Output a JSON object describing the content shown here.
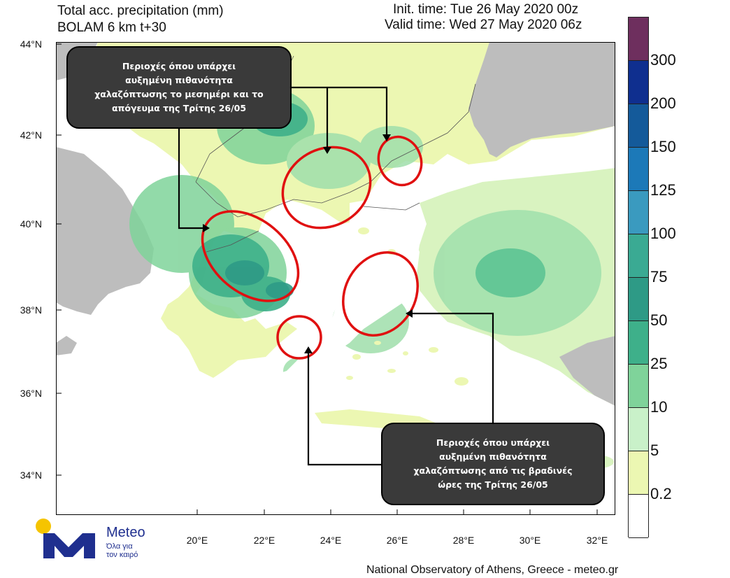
{
  "header": {
    "title_line1": "Total acc. precipitation (mm)",
    "title_line2": "BOLAM 6 km t+30",
    "init_time": "Init. time: Tue 26 May 2020 00z",
    "valid_time": "Valid time: Wed 27 May 2020 06z"
  },
  "axes": {
    "lat_labels": [
      "44°N",
      "42°N",
      "40°N",
      "38°N",
      "36°N",
      "34°N"
    ],
    "lon_labels": [
      "20°E",
      "22°E",
      "24°E",
      "26°E",
      "28°E",
      "30°E",
      "32°E"
    ]
  },
  "colorbar": {
    "labels": [
      "300",
      "200",
      "150",
      "125",
      "100",
      "75",
      "50",
      "25",
      "10",
      "5",
      "0.2"
    ],
    "colors": [
      "#6e2f5e",
      "#0f2f8f",
      "#145a9a",
      "#1c79b8",
      "#3a9abf",
      "#3aaa93",
      "#2e9a86",
      "#3eb08a",
      "#7fd39a",
      "#c9f1c9",
      "#ecf7b2",
      "#ffffff"
    ]
  },
  "callouts": {
    "top": {
      "lines": [
        "Περιοχές όπου υπάρχει",
        "αυξημένη πιθανότητα",
        "χαλαζόπτωσης το μεσημέρι και το",
        "απόγευμα της Τρίτης  26/05"
      ]
    },
    "bottom": {
      "lines": [
        "Περιοχές όπου υπάρχει",
        "αυξημένη πιθανότητα",
        "χαλαζόπτωσης από τις βραδινές",
        "ώρες της Τρίτης  26/05"
      ]
    }
  },
  "logo": {
    "name": "Meteo",
    "tagline_line1": "Όλα για",
    "tagline_line2": "τον καιρό"
  },
  "footer": {
    "credit": "National Observatory of Athens, Greece - meteo.gr"
  },
  "colors": {
    "land_gray": "#bdbdbd",
    "sea_white": "#ffffff",
    "highlight_ellipse": "#e01010",
    "callout_bg": "#3a3a3a",
    "logo_blue": "#1f2f8f",
    "logo_yellow": "#f5c400"
  }
}
